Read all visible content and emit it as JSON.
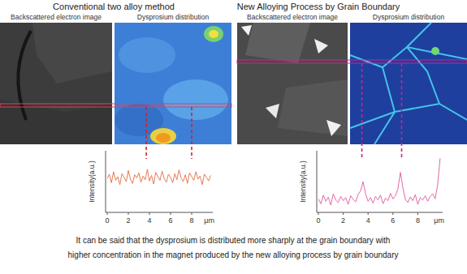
{
  "chart_data": [
    {
      "type": "line",
      "title": "Conventional two alloy method",
      "x_label": "μm",
      "y_label": "Intensity(a.u.)",
      "x": [
        0,
        0.2,
        0.4,
        0.6,
        0.8,
        1,
        1.2,
        1.4,
        1.6,
        1.8,
        2,
        2.2,
        2.4,
        2.6,
        2.8,
        3,
        3.2,
        3.4,
        3.6,
        3.8,
        4,
        4.2,
        4.4,
        4.6,
        4.8,
        5,
        5.2,
        5.4,
        5.6,
        5.8,
        6,
        6.2,
        6.4,
        6.6,
        6.8,
        7,
        7.2,
        7.4,
        7.6,
        7.8,
        8,
        8.2,
        8.4,
        8.6,
        8.8,
        9,
        9.2,
        9.4,
        9.6,
        9.8
      ],
      "values": [
        55,
        62,
        48,
        66,
        52,
        58,
        45,
        63,
        57,
        50,
        68,
        54,
        47,
        61,
        56,
        64,
        49,
        59,
        53,
        70,
        51,
        60,
        46,
        65,
        58,
        52,
        67,
        55,
        49,
        62,
        57,
        48,
        63,
        53,
        69,
        56,
        50,
        61,
        47,
        64,
        58,
        52,
        66,
        54,
        59,
        45,
        62,
        57,
        51,
        60
      ],
      "color": "#e87a55",
      "guide_lines": [
        3.7,
        8.0
      ],
      "xlim": [
        0,
        10
      ],
      "xticks": [
        0,
        2,
        4,
        6,
        8
      ],
      "ylim": [
        0,
        100
      ],
      "tick_labels": "x",
      "grid": false,
      "image_labels": [
        "Backscattered electron image",
        "Dysprosium distribution"
      ]
    },
    {
      "type": "line",
      "title": "New Alloying Process by Grain Boundary",
      "x_label": "μm",
      "y_label": "Intensity(a.u.)",
      "x": [
        0,
        0.2,
        0.4,
        0.6,
        0.8,
        1,
        1.2,
        1.4,
        1.6,
        1.8,
        2,
        2.2,
        2.4,
        2.6,
        2.8,
        3,
        3.2,
        3.4,
        3.6,
        3.8,
        4,
        4.2,
        4.4,
        4.6,
        4.8,
        5,
        5.2,
        5.4,
        5.6,
        5.8,
        6,
        6.2,
        6.4,
        6.6,
        6.8,
        7,
        7.2,
        7.4,
        7.6,
        7.8,
        8,
        8.2,
        8.4,
        8.6,
        8.8,
        9,
        9.2,
        9.4,
        9.6,
        9.8
      ],
      "values": [
        22,
        14,
        28,
        18,
        25,
        12,
        30,
        20,
        16,
        26,
        19,
        24,
        13,
        27,
        21,
        17,
        29,
        35,
        50,
        30,
        18,
        24,
        15,
        26,
        20,
        28,
        14,
        23,
        19,
        31,
        22,
        27,
        38,
        65,
        40,
        21,
        16,
        25,
        19,
        29,
        13,
        24,
        20,
        27,
        18,
        26,
        30,
        22,
        45,
        88
      ],
      "color": "#e667a8",
      "guide_lines": [
        3.5,
        6.7
      ],
      "xlim": [
        0,
        10
      ],
      "xticks": [
        0,
        2,
        4,
        6,
        8
      ],
      "ylim": [
        0,
        100
      ],
      "tick_labels": "x",
      "grid": false,
      "image_labels": [
        "Backscattered electron image",
        "Dysprosium distribution"
      ]
    }
  ],
  "caption": [
    "It can be said that the dysprosium is distributed more sharply at the grain boundary with",
    "higher concentration in the magnet produced by the new alloying process by grain boundary"
  ]
}
